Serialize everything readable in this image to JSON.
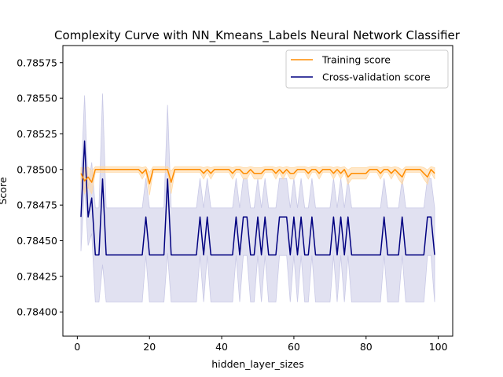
{
  "chart_data": {
    "type": "line",
    "title": "Complexity Curve with NN_Kmeans_Labels Neural Network Classifier",
    "xlabel": "hidden_layer_sizes",
    "ylabel": "Score",
    "xlim": [
      -4,
      104
    ],
    "ylim": [
      0.78383,
      0.78587
    ],
    "x_ticks": [
      0,
      20,
      40,
      60,
      80,
      100
    ],
    "y_ticks": [
      0.784,
      0.78425,
      0.7845,
      0.78475,
      0.785,
      0.78525,
      0.7855,
      0.78575
    ],
    "y_tick_labels": [
      "0.78400",
      "0.78425",
      "0.78450",
      "0.78475",
      "0.78500",
      "0.78525",
      "0.78550",
      "0.78575"
    ],
    "legend_position": "upper-right",
    "grid": false,
    "x": [
      1,
      2,
      3,
      4,
      5,
      6,
      7,
      8,
      9,
      10,
      11,
      12,
      13,
      14,
      15,
      16,
      17,
      18,
      19,
      20,
      21,
      22,
      23,
      24,
      25,
      26,
      27,
      28,
      29,
      30,
      31,
      32,
      33,
      34,
      35,
      36,
      37,
      38,
      39,
      40,
      41,
      42,
      43,
      44,
      45,
      46,
      47,
      48,
      49,
      50,
      51,
      52,
      53,
      54,
      55,
      56,
      57,
      58,
      59,
      60,
      61,
      62,
      63,
      64,
      65,
      66,
      67,
      68,
      69,
      70,
      71,
      72,
      73,
      74,
      75,
      76,
      77,
      78,
      79,
      80,
      81,
      82,
      83,
      84,
      85,
      86,
      87,
      88,
      89,
      90,
      91,
      92,
      93,
      94,
      95,
      96,
      97,
      98,
      99
    ],
    "series": [
      {
        "name": "Training score",
        "color": "#ff8c00",
        "band_color": "#ffd9a6",
        "values": [
          0.784973,
          0.78492,
          0.784947,
          0.78491,
          0.785,
          0.785,
          0.785,
          0.785,
          0.785,
          0.785,
          0.785,
          0.785,
          0.785,
          0.785,
          0.785,
          0.785,
          0.785,
          0.784973,
          0.785,
          0.7849,
          0.785,
          0.785,
          0.785,
          0.785,
          0.785,
          0.78491,
          0.785,
          0.785,
          0.785,
          0.785,
          0.785,
          0.785,
          0.785,
          0.785,
          0.784973,
          0.785,
          0.784973,
          0.785,
          0.785,
          0.785,
          0.785,
          0.785,
          0.784973,
          0.785,
          0.785,
          0.784973,
          0.784973,
          0.785,
          0.784973,
          0.784973,
          0.784973,
          0.785,
          0.785,
          0.785,
          0.784973,
          0.785,
          0.784973,
          0.785,
          0.784973,
          0.784973,
          0.785,
          0.785,
          0.785,
          0.784973,
          0.785,
          0.785,
          0.784973,
          0.785,
          0.785,
          0.785,
          0.784973,
          0.785,
          0.784973,
          0.785,
          0.784947,
          0.784973,
          0.784973,
          0.784973,
          0.784973,
          0.784973,
          0.785,
          0.785,
          0.785,
          0.784973,
          0.785,
          0.785,
          0.784973,
          0.785,
          0.784973,
          0.784947,
          0.785,
          0.785,
          0.785,
          0.785,
          0.785,
          0.784973,
          0.784947,
          0.785,
          0.784973
        ],
        "std": [
          4e-05,
          9e-05,
          7e-05,
          8e-05,
          2e-05,
          2e-05,
          2e-05,
          2e-05,
          2e-05,
          2e-05,
          2e-05,
          2e-05,
          2e-05,
          2e-05,
          2e-05,
          2e-05,
          2e-05,
          4e-05,
          2e-05,
          8e-05,
          2e-05,
          2e-05,
          2e-05,
          2e-05,
          2e-05,
          8e-05,
          2e-05,
          2e-05,
          2e-05,
          2e-05,
          2e-05,
          2e-05,
          2e-05,
          2e-05,
          4e-05,
          2e-05,
          4e-05,
          2e-05,
          2e-05,
          2e-05,
          2e-05,
          2e-05,
          4e-05,
          2e-05,
          2e-05,
          4e-05,
          4e-05,
          2e-05,
          4e-05,
          4e-05,
          4e-05,
          2e-05,
          2e-05,
          2e-05,
          4e-05,
          2e-05,
          4e-05,
          2e-05,
          4e-05,
          4e-05,
          2e-05,
          2e-05,
          2e-05,
          4e-05,
          2e-05,
          2e-05,
          4e-05,
          2e-05,
          2e-05,
          2e-05,
          4e-05,
          2e-05,
          4e-05,
          2e-05,
          5e-05,
          4e-05,
          4e-05,
          4e-05,
          4e-05,
          4e-05,
          2e-05,
          2e-05,
          2e-05,
          4e-05,
          2e-05,
          2e-05,
          4e-05,
          2e-05,
          4e-05,
          5e-05,
          2e-05,
          2e-05,
          2e-05,
          2e-05,
          2e-05,
          4e-05,
          5e-05,
          2e-05,
          4e-05
        ]
      },
      {
        "name": "Cross-validation score",
        "color": "#000080",
        "band_color": "#c9c9e6",
        "values": [
          0.784667,
          0.7852,
          0.784667,
          0.7848,
          0.7844,
          0.7844,
          0.784933,
          0.7844,
          0.7844,
          0.7844,
          0.7844,
          0.7844,
          0.7844,
          0.7844,
          0.7844,
          0.7844,
          0.7844,
          0.7844,
          0.784667,
          0.7844,
          0.7844,
          0.7844,
          0.7844,
          0.7844,
          0.784933,
          0.7844,
          0.7844,
          0.7844,
          0.7844,
          0.7844,
          0.7844,
          0.7844,
          0.7844,
          0.784667,
          0.7844,
          0.784667,
          0.7844,
          0.7844,
          0.7844,
          0.7844,
          0.7844,
          0.7844,
          0.7844,
          0.784667,
          0.7844,
          0.784667,
          0.784667,
          0.7844,
          0.7844,
          0.784667,
          0.7844,
          0.784667,
          0.7844,
          0.7844,
          0.7844,
          0.784667,
          0.784667,
          0.784667,
          0.7844,
          0.784667,
          0.7844,
          0.784667,
          0.7844,
          0.7844,
          0.784667,
          0.7844,
          0.7844,
          0.7844,
          0.7844,
          0.7844,
          0.784667,
          0.7844,
          0.784667,
          0.7844,
          0.784667,
          0.7844,
          0.7844,
          0.7844,
          0.7844,
          0.7844,
          0.7844,
          0.7844,
          0.7844,
          0.7844,
          0.784667,
          0.7844,
          0.7844,
          0.7844,
          0.7844,
          0.784667,
          0.7844,
          0.7844,
          0.7844,
          0.7844,
          0.7844,
          0.7844,
          0.784667,
          0.784667,
          0.7844
        ],
        "std": [
          0.00024,
          0.00032,
          0.0002,
          0.00025,
          0.00033,
          0.00033,
          0.0006,
          0.00033,
          0.00033,
          0.00033,
          0.00033,
          0.00033,
          0.00033,
          0.00033,
          0.00033,
          0.00033,
          0.00033,
          0.00033,
          0.00027,
          0.00033,
          0.00033,
          0.00033,
          0.00033,
          0.00033,
          0.00052,
          0.00033,
          0.00033,
          0.00033,
          0.00033,
          0.00033,
          0.00033,
          0.00033,
          0.00033,
          0.00027,
          0.00033,
          0.00027,
          0.00033,
          0.00033,
          0.00033,
          0.00033,
          0.00033,
          0.00033,
          0.00033,
          0.00027,
          0.00033,
          0.00027,
          0.00027,
          0.00033,
          0.00033,
          0.00027,
          0.00033,
          0.00027,
          0.00033,
          0.00033,
          0.00033,
          0.00027,
          0.00027,
          0.00027,
          0.00033,
          0.00027,
          0.00033,
          0.00027,
          0.00033,
          0.00033,
          0.00027,
          0.00033,
          0.00033,
          0.00033,
          0.00033,
          0.00033,
          0.00027,
          0.00033,
          0.00027,
          0.00033,
          0.00027,
          0.00033,
          0.00033,
          0.00033,
          0.00033,
          0.00033,
          0.00033,
          0.00033,
          0.00033,
          0.00033,
          0.00027,
          0.00033,
          0.00033,
          0.00033,
          0.00033,
          0.00027,
          0.00033,
          0.00033,
          0.00033,
          0.00033,
          0.00033,
          0.00033,
          0.00027,
          0.00027,
          0.00033
        ]
      }
    ]
  }
}
